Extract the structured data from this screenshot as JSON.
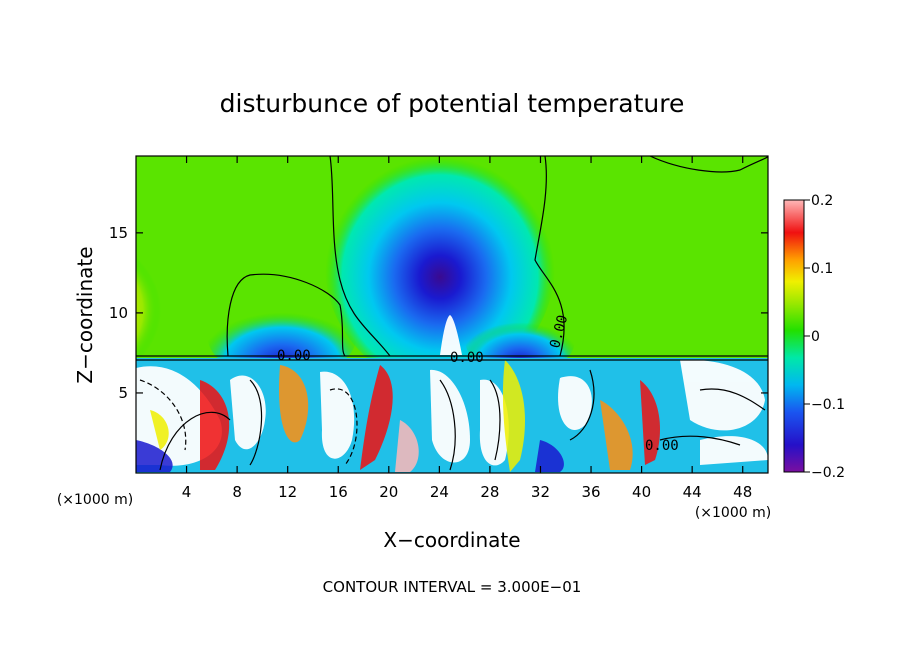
{
  "chart_data": {
    "type": "heatmap",
    "title": "disturbunce of potential temperature",
    "xlabel": "X−coordinate",
    "ylabel": "Z−coordinate",
    "x_unit": "(×1000 m)",
    "x_unit_right": "(×1000 m)",
    "footer": "CONTOUR INTERVAL = 3.000E−01",
    "xlim": [
      0,
      50
    ],
    "ylim": [
      0,
      19.8
    ],
    "x_ticks": [
      4,
      8,
      12,
      16,
      20,
      24,
      28,
      32,
      36,
      40,
      44,
      48
    ],
    "x_tick_labels": [
      "4",
      "8",
      "12",
      "16",
      "20",
      "24",
      "28",
      "32",
      "36",
      "40",
      "44",
      "48"
    ],
    "y_ticks": [
      5,
      10,
      15
    ],
    "y_tick_labels": [
      "5",
      "10",
      "15"
    ],
    "colorbar": {
      "range": [
        -0.2,
        0.2
      ],
      "ticks": [
        -0.2,
        -0.1,
        0,
        0.1,
        0.2
      ],
      "tick_labels": [
        "−0.2",
        "−0.1",
        "0",
        "0.1",
        "0.2"
      ]
    },
    "contour_labels": [
      {
        "text": "0.00",
        "x": 12.8,
        "z": 7.3
      },
      {
        "text": "0.00",
        "x": 26.0,
        "z": 7.2
      },
      {
        "text": "0.00",
        "x": 33.6,
        "z": 8.3
      },
      {
        "text": "0.00",
        "x": 41.8,
        "z": 1.9
      }
    ],
    "grid": false
  }
}
